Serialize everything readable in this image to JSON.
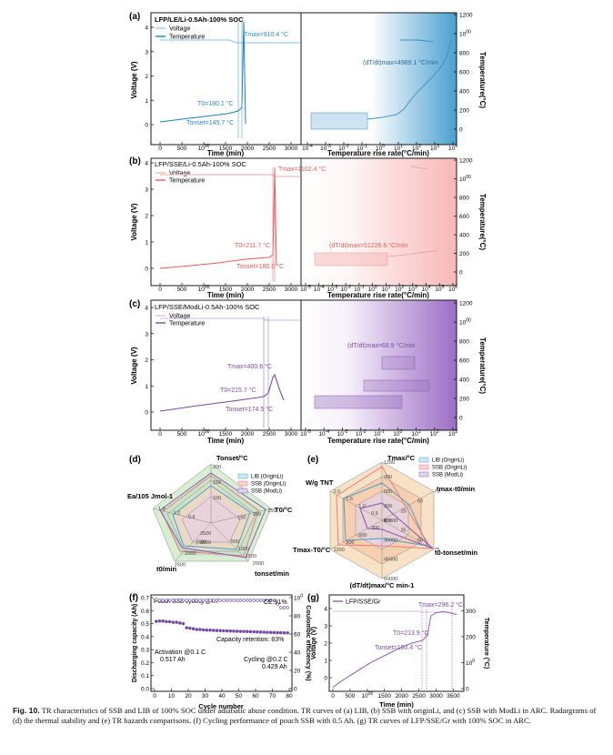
{
  "caption": {
    "label": "Fig. 10.",
    "text": "TR characteristics of SSB and LIB of 100% SOC under adiabatic abuse condition. TR curves of (a) LIB, (b) SSB with originLi, and (c) SSB with ModLi in ARC. Radargrams of (d) the thermal stability and (e) TR hazards comparisons. (f) Cycling performance of pouch SSB with 0.5 Ah. (g) TR curves of LFP/SSE/Gr with 100% SOC in ARC."
  },
  "colors": {
    "lib": "#4a9fd0",
    "ssb": "#f07a7a",
    "mod": "#8a5bb5",
    "teal": "#3a9a9a",
    "green": "#7dbd7d",
    "orange": "#f2b061"
  },
  "common": {
    "ylabel_left": "Voltage (V)",
    "ylabel_right": "Temperature(°C)",
    "xlabel_left": "Time (min)",
    "xlabel_right": "Temperature rise rate(°C/min)",
    "legend_voltage": "Voltage",
    "legend_temperature": "Temperature",
    "yticks_left": [
      "0",
      "1",
      "2",
      "3",
      "4"
    ],
    "yticks_right": [
      "0",
      "200",
      "400",
      "600",
      "800",
      "1000",
      "1200"
    ],
    "xticks_time": [
      "0",
      "500",
      "1000",
      "1500",
      "2000",
      "2500",
      "3000"
    ]
  },
  "panels": [
    {
      "tag": "(a)",
      "title": "LFP/LE/Li-0.5Ah-100% SOC",
      "tmax": "Tmax=910.4 °C",
      "t0": "T0=180.1 °C",
      "tonset": "Tonset=145.7 °C",
      "rate": "(dT/dt)max=4989.1 °C/min",
      "rate_ticks": [
        "10-4",
        "10-3",
        "10-2",
        "10-1",
        "100",
        "101",
        "102",
        "103",
        "104"
      ]
    },
    {
      "tag": "(b)",
      "title": "LFP/SSE/Li-0.5Ah-100% SOC",
      "tmax": "Tmax=1102.4 °C",
      "t0": "T0=211.7 °C",
      "tonset": "Tonset=180.0 °C",
      "rate": "(dT/dt)max=51226.6 °C/min",
      "rate_ticks": [
        "10-5",
        "10-4",
        "10-3",
        "10-2",
        "10-1",
        "100",
        "101",
        "102",
        "103",
        "104",
        "105",
        "106"
      ]
    },
    {
      "tag": "(c)",
      "title": "LFP/SSE/ModLi-0.5Ah-100% SOC",
      "tmax": "Tmax=400.6 °C",
      "t0": "T0=215.7 °C",
      "tonset": "Tonset=174.5 °C",
      "rate": "(dT/dt)max=68.9 °C/min",
      "rate_ticks": [
        "10-5",
        "10-4",
        "10-3",
        "10-2",
        "10-1",
        "100",
        "101",
        "102",
        "103"
      ]
    }
  ],
  "radar_d": {
    "tag": "(d)",
    "axes": [
      "Tonset/°C",
      "T0/°C",
      "tonset/min",
      "t0/min",
      "Ea/105 Jmol-1"
    ],
    "legend": [
      "LIB (OriginLi)",
      "SSB (OriginLi)",
      "SSB (ModLi)"
    ],
    "ticks": {
      "a0": [
        "100",
        "150",
        "200"
      ],
      "a1": [
        "150",
        "200",
        "250"
      ],
      "a2": [
        "500",
        "1000",
        "1500",
        "2000"
      ],
      "a3": [
        "1500",
        "2000",
        "2500"
      ],
      "a4": [
        "0.6",
        "1.2",
        "1.8"
      ],
      "inner": [
        "2500",
        "3000"
      ]
    }
  },
  "radar_e": {
    "tag": "(e)",
    "axes": [
      "Tmax/°C",
      "tmax-t0/min",
      "t0-tonset/min",
      "(dT/dt)max/°C min-1",
      "Tmax-T0/°C",
      "W/g TNT"
    ],
    "legend": [
      "LIB (OriginLi)",
      "SSB (OriginLi)",
      "SSB (ModLi)"
    ],
    "ticks": {
      "a0": [
        "0",
        "300",
        "600",
        "900",
        "1200"
      ],
      "a1": [
        "0",
        "25",
        "50",
        "75"
      ],
      "a2": [
        "0",
        "25",
        "50",
        "75"
      ],
      "a3": [
        "15000",
        "30000",
        "45000",
        "60000"
      ],
      "a4": [
        "0",
        "300",
        "600",
        "900",
        "1200"
      ],
      "a5": [
        "0.0",
        "0.5",
        "1.0",
        "1.5",
        "2.0"
      ]
    }
  },
  "panel_f": {
    "tag": "(f)",
    "title": "Pouch SSB cycling @RT",
    "ylabel_left": "Discharging capacity (Ah)",
    "ylabel_right": "Coulombic efficiency (%)",
    "xlabel": "Cycle number",
    "yticks_left": [
      "0.0",
      "0.1",
      "0.2",
      "0.3",
      "0.4",
      "0.5",
      "0.6",
      "0.7"
    ],
    "yticks_right": [
      "0",
      "20",
      "40",
      "60",
      "80",
      "100"
    ],
    "xticks": [
      "0",
      "10",
      "20",
      "30",
      "40",
      "50",
      "60",
      "70",
      "80"
    ],
    "ce": "CE:91%",
    "retention": "Capacity retention: 83%",
    "activation": "Activation @0.1 C",
    "act_cap": "0.517 Ah",
    "cycling": "Cycling @0.2 C",
    "cyc_cap": "0.429 Ah",
    "chart_data": {
      "type": "scatter",
      "x": [
        1,
        3,
        5,
        7,
        9,
        11,
        13,
        15,
        17,
        19,
        21,
        23,
        25,
        27,
        29,
        31,
        33,
        35,
        37,
        39,
        41,
        43,
        45,
        47,
        49,
        51,
        53,
        55,
        57,
        59,
        61,
        63,
        65,
        67,
        69,
        71,
        73,
        75,
        77,
        79
      ],
      "capacity": [
        0.517,
        0.52,
        0.52,
        0.515,
        0.515,
        0.51,
        0.51,
        0.505,
        0.5,
        0.468,
        0.465,
        0.46,
        0.455,
        0.455,
        0.452,
        0.45,
        0.45,
        0.448,
        0.447,
        0.446,
        0.445,
        0.444,
        0.443,
        0.442,
        0.441,
        0.44,
        0.44,
        0.439,
        0.438,
        0.437,
        0.436,
        0.435,
        0.434,
        0.433,
        0.432,
        0.431,
        0.43,
        0.43,
        0.429,
        0.429
      ],
      "ce": [
        100,
        99,
        99,
        99,
        99,
        99,
        99,
        99,
        99,
        99,
        99,
        99,
        99,
        99,
        99,
        99,
        99,
        99,
        99,
        99,
        99,
        99,
        99,
        99,
        99,
        99,
        99,
        99,
        99,
        99,
        99,
        99,
        99,
        99,
        99,
        99,
        95,
        91,
        91,
        91
      ],
      "xlim": [
        0,
        80
      ],
      "ylim_left": [
        0,
        0.7
      ],
      "ylim_right": [
        0,
        100
      ]
    }
  },
  "panel_g": {
    "tag": "(g)",
    "legend": "LFP/SSE/Gr",
    "ylabel_left": "Voltage (V)",
    "ylabel_right": "Temperature (°C)",
    "xlabel": "Time (min)",
    "yticks_left": [
      "0",
      "1",
      "2",
      "3",
      "4"
    ],
    "yticks_right": [
      "0",
      "100",
      "200",
      "300"
    ],
    "xticks": [
      "0",
      "500",
      "1000",
      "1500",
      "2000",
      "2500",
      "3000",
      "3500"
    ],
    "tmax": "Tmax=296.2 °C",
    "t0": "T0=213.9 °C",
    "tonset": "Tonset=180.4 °C",
    "chart_data": {
      "type": "line",
      "time": [
        0,
        200,
        500,
        800,
        1100,
        1400,
        1700,
        2000,
        2300,
        2600,
        2750,
        2850,
        3000,
        3200,
        3400,
        3600
      ],
      "temperature": [
        5,
        25,
        50,
        75,
        100,
        120,
        140,
        160,
        175,
        185,
        205,
        280,
        292,
        296,
        292,
        285
      ],
      "xlim": [
        0,
        3700
      ],
      "ylim_right": [
        0,
        350
      ]
    }
  }
}
